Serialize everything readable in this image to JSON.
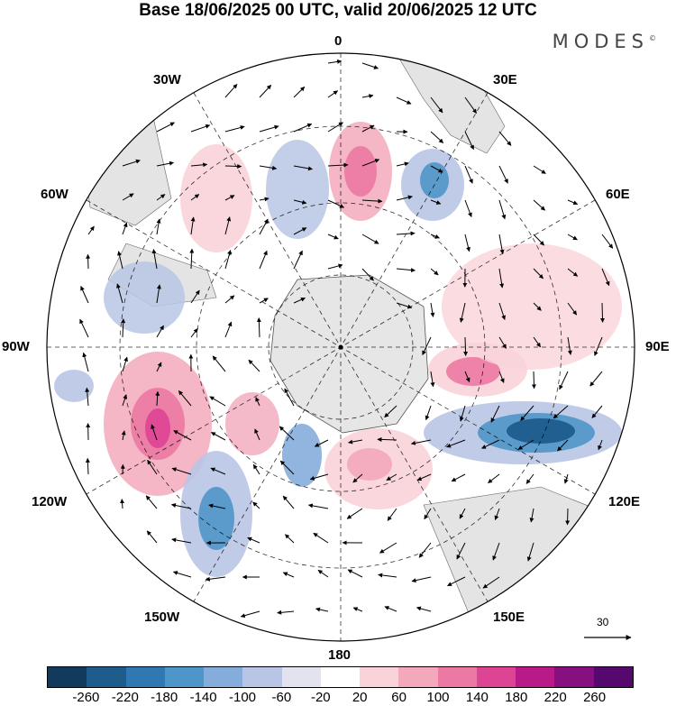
{
  "title": "Base 18/06/2025 00 UTC, valid 20/06/2025 12 UTC",
  "brand": "MODES",
  "brand_mark": "©",
  "longitude_labels": {
    "top": "0",
    "bottom": "180",
    "left": "90W",
    "right": "90E",
    "w30": "30W",
    "e30": "30E",
    "w60": "60W",
    "e60": "60E",
    "w120": "120W",
    "e120": "120E",
    "w150": "150W",
    "e150": "150E"
  },
  "reference_vector": {
    "label": "30"
  },
  "colorbar": {
    "ticks": [
      "-260",
      "-220",
      "-180",
      "-140",
      "-100",
      "-60",
      "-20",
      "20",
      "60",
      "100",
      "140",
      "180",
      "220",
      "260"
    ],
    "colors": [
      "#123a5c",
      "#1e5c8c",
      "#2f78b2",
      "#4f96c8",
      "#85addb",
      "#b9c5e4",
      "#e3e3f0",
      "#ffffff",
      "#f9d3d9",
      "#f3a9bb",
      "#ec79a3",
      "#dd4494",
      "#ba1a88",
      "#871080",
      "#55086e"
    ]
  },
  "map": {
    "projection": "polar stereographic south",
    "field": "anomaly (shaded) with wind vectors",
    "features": [
      {
        "kind": "positive",
        "intensity": 0.75,
        "color": "#e35ea3"
      },
      {
        "kind": "positive",
        "intensity": 0.7,
        "color": "#e35ea3"
      },
      {
        "kind": "positive",
        "intensity": 0.6,
        "color": "#ec79a3"
      },
      {
        "kind": "negative",
        "intensity": 0.9,
        "color": "#1e5c8c"
      },
      {
        "kind": "negative",
        "intensity": 0.6,
        "color": "#4f96c8"
      },
      {
        "kind": "negative",
        "intensity": 0.55,
        "color": "#4f96c8"
      }
    ]
  }
}
